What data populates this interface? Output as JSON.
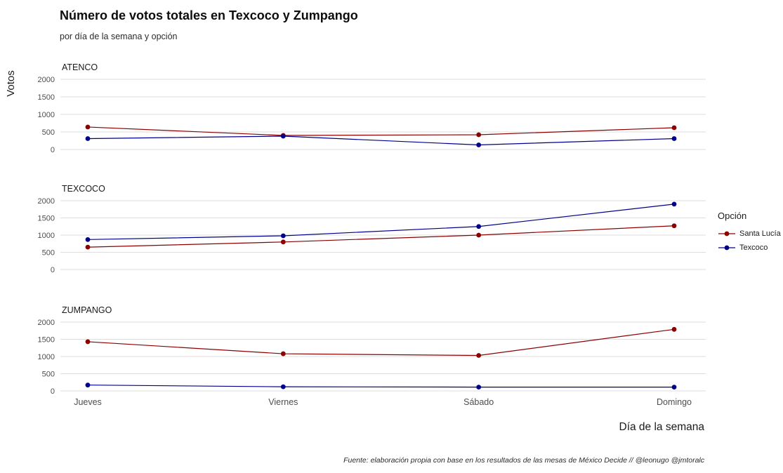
{
  "title": "Número de votos totales en Texcoco y Zumpango",
  "subtitle": "por día de la semana y opción",
  "ylabel": "Votos",
  "xlabel": "Día de la semana",
  "caption": "Fuente: elaboración propia con base en los resultados de las mesas de México Decide // @leonugo @jmtoralc",
  "legend": {
    "title": "Opción",
    "entries": [
      {
        "label": "Santa Lucía",
        "color": "#8B0000"
      },
      {
        "label": "Texcoco",
        "color": "#00008B"
      }
    ]
  },
  "chart_data": {
    "type": "line",
    "categories": [
      "Jueves",
      "Viernes",
      "Sábado",
      "Domingo"
    ],
    "ylim": [
      0,
      2000
    ],
    "yticks": [
      0,
      500,
      1000,
      1500,
      2000
    ],
    "grid": "horizontal",
    "legend_position": "right",
    "series_colors": {
      "Santa Lucía": "#8B0000",
      "Texcoco": "#00008B"
    },
    "facets": [
      {
        "name": "ATENCO",
        "series": [
          {
            "name": "Santa Lucía",
            "values": [
              640,
              400,
              420,
              620
            ]
          },
          {
            "name": "Texcoco",
            "values": [
              310,
              380,
              130,
              310
            ]
          }
        ]
      },
      {
        "name": "TEXCOCO",
        "series": [
          {
            "name": "Santa Lucía",
            "values": [
              650,
              800,
              1000,
              1270
            ]
          },
          {
            "name": "Texcoco",
            "values": [
              870,
              980,
              1250,
              1900
            ]
          }
        ]
      },
      {
        "name": "ZUMPANGO",
        "series": [
          {
            "name": "Santa Lucía",
            "values": [
              1430,
              1080,
              1030,
              1790
            ]
          },
          {
            "name": "Texcoco",
            "values": [
              170,
              120,
              110,
              110
            ]
          }
        ]
      }
    ]
  }
}
